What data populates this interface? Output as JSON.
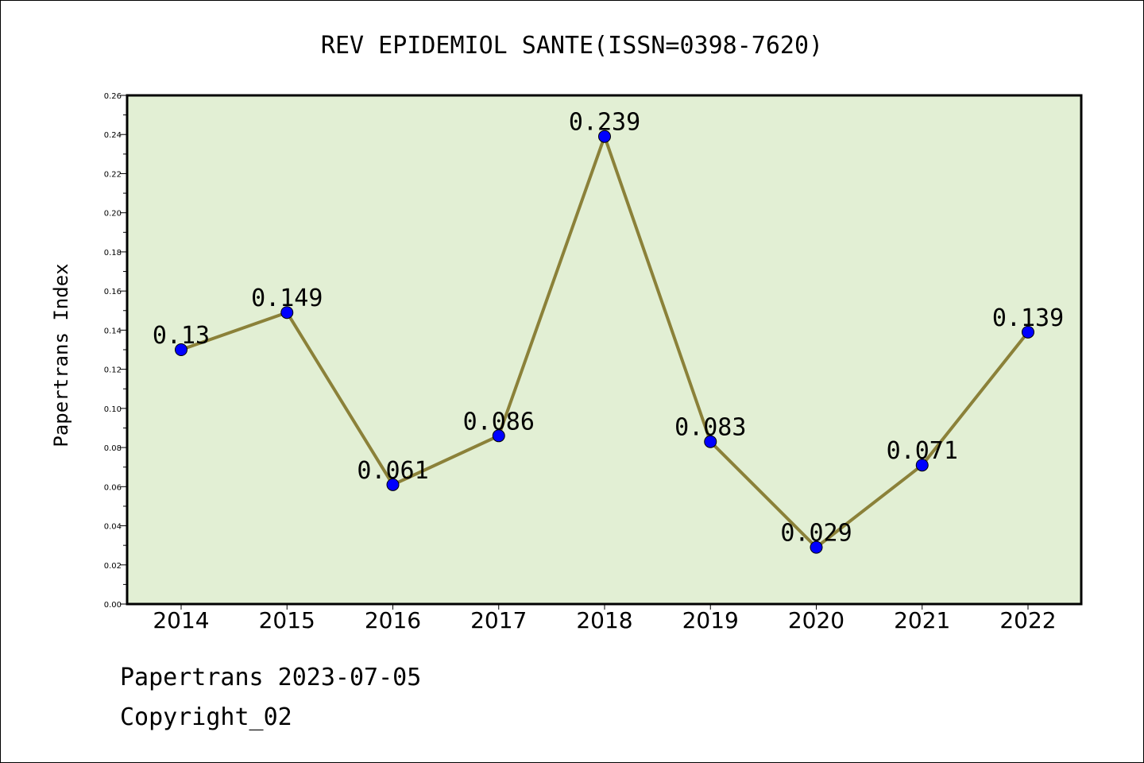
{
  "chart_data": {
    "type": "line",
    "title": "REV EPIDEMIOL SANTE(ISSN=0398-7620)",
    "xlabel": "",
    "ylabel": "Papertrans Index",
    "categories": [
      "2014",
      "2015",
      "2016",
      "2017",
      "2018",
      "2019",
      "2020",
      "2021",
      "2022"
    ],
    "series": [
      {
        "values": [
          0.13,
          0.149,
          0.061,
          0.086,
          0.239,
          0.083,
          0.029,
          0.071,
          0.139
        ],
        "data_labels": [
          "0.13",
          "0.149",
          "0.061",
          "0.086",
          "0.239",
          "0.083",
          "0.029",
          "0.071",
          "0.139"
        ]
      }
    ],
    "ylim": [
      0,
      0.26
    ],
    "yticks": [
      "0.00",
      "0.02",
      "0.04",
      "0.06",
      "0.08",
      "0.10",
      "0.12",
      "0.14",
      "0.16",
      "0.18",
      "0.20",
      "0.22",
      "0.24",
      "0.26"
    ],
    "grid": false,
    "legend": "none",
    "colors": {
      "plot_background": "#e2efd4",
      "line": "#8b8139",
      "marker": "#0000ff"
    }
  },
  "footer": {
    "line1": "Papertrans 2023-07-05",
    "line2": "Copyright_02"
  }
}
